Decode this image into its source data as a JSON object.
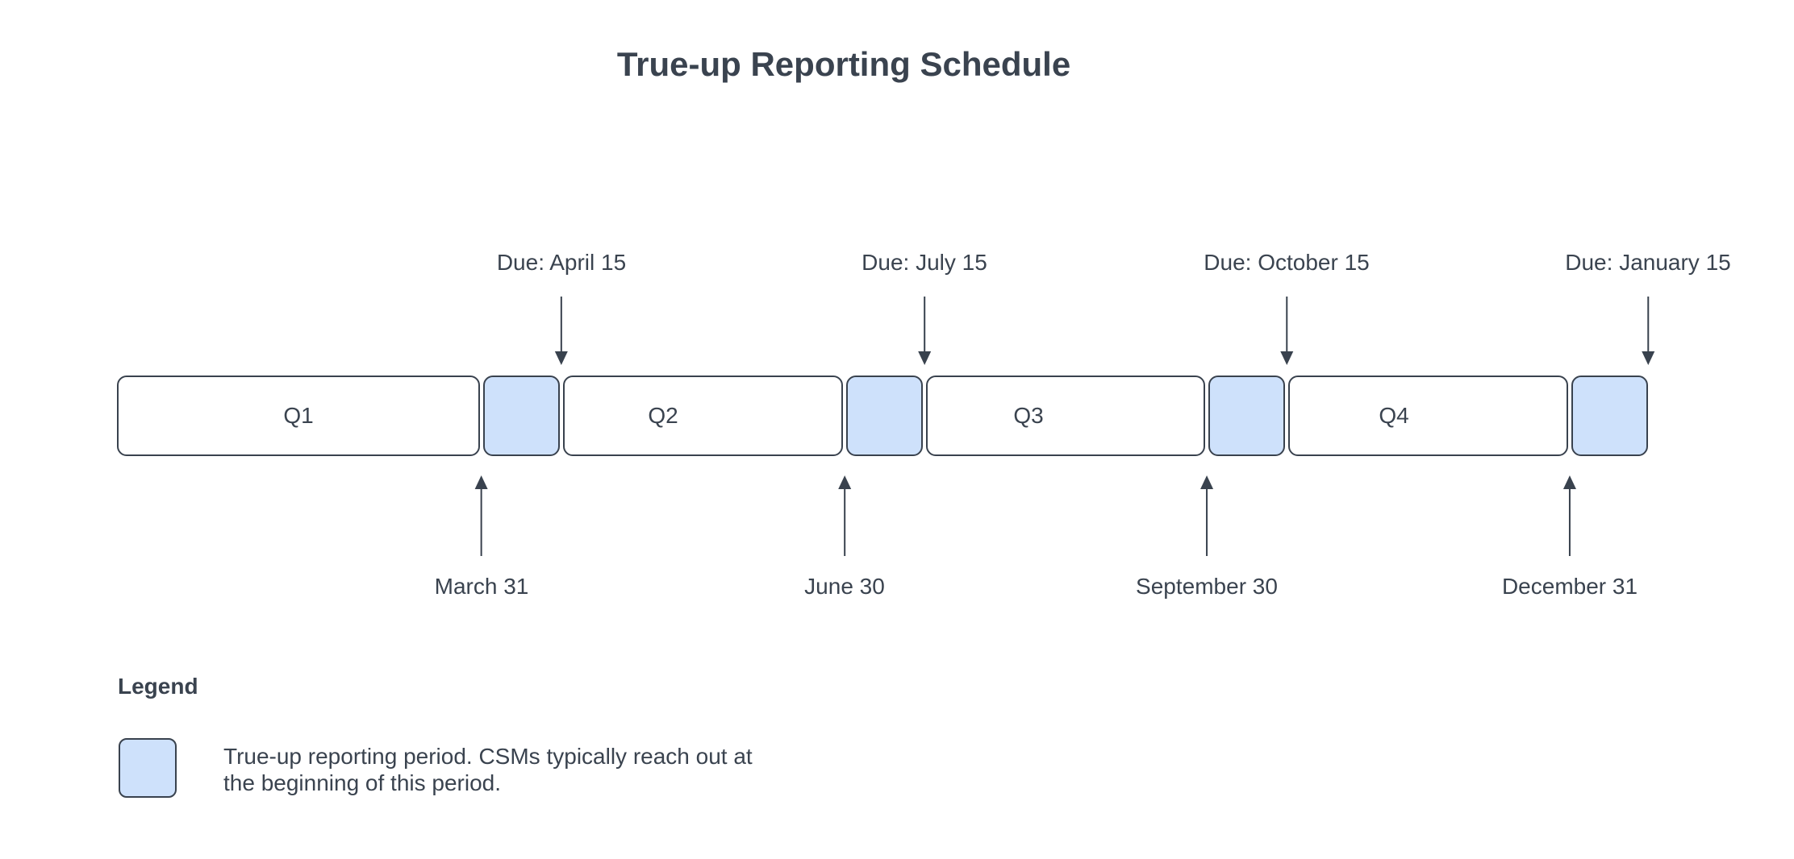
{
  "title": "True-up Reporting Schedule",
  "colors": {
    "highlight_fill": "#cee1fb",
    "outline": "#39424e",
    "text": "#3a434f",
    "background": "#ffffff"
  },
  "timeline": {
    "quarters": [
      {
        "label": "Q1"
      },
      {
        "label": "Q2"
      },
      {
        "label": "Q3"
      },
      {
        "label": "Q4"
      }
    ],
    "due_dates": [
      {
        "label": "Due: April 15"
      },
      {
        "label": "Due: July 15"
      },
      {
        "label": "Due: October 15"
      },
      {
        "label": "Due: January 15"
      }
    ],
    "quarter_end_dates": [
      {
        "label": "March 31"
      },
      {
        "label": "June 30"
      },
      {
        "label": "September 30"
      },
      {
        "label": "December 31"
      }
    ]
  },
  "legend": {
    "title": "Legend",
    "items": [
      {
        "swatch_color": "#cee1fb",
        "line1": "True-up reporting period. CSMs typically reach out at",
        "line2": "the beginning of this period."
      }
    ]
  }
}
